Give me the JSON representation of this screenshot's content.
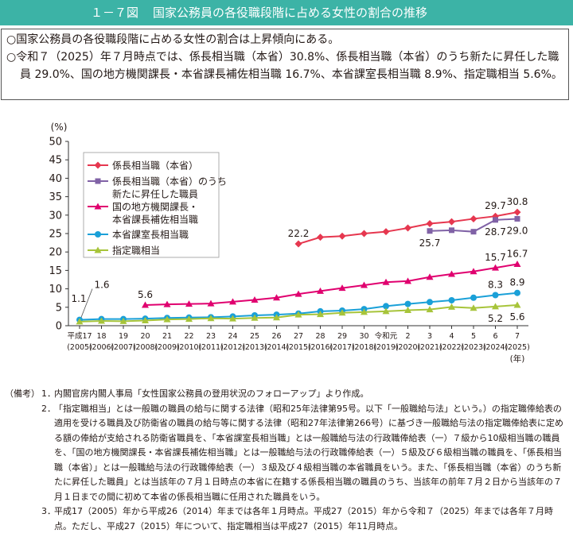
{
  "header": {
    "figure_number": "１－７図",
    "title": "国家公務員の各役職段階に占める女性の割合の推移"
  },
  "summary": [
    "○国家公務員の各役職段階に占める女性の割合は上昇傾向にある。",
    "○令和７（2025）年７月時点では、係長相当職（本省）30.8%、係長相当職（本省）のうち新たに昇任した職員 29.0%、国の地方機関課長・本省課長補佐相当職 16.7%、本省課室長相当職 8.9%、指定職相当 5.6%。"
  ],
  "notes": {
    "lead": "（備考）",
    "items": [
      {
        "num": "1．",
        "text": "内閣官房内閣人事局「女性国家公務員の登用状況のフォローアップ」より作成。"
      },
      {
        "num": "2．",
        "text": "「指定職相当」とは一般職の職員の給与に関する法律（昭和25年法律第95号。以下「一般職給与法」という。）の指定職俸給表の適用を受ける職員及び防衛省の職員の給与等に関する法律（昭和27年法律第266号）に基づき一般職給与法の指定職俸給表に定める額の俸給が支給される防衛省職員を、「本省課室長相当職」とは一般職給与法の行政職俸給表（一）７級から10級相当職の職員を、「国の地方機関課長・本省課長補佐相当職」とは一般職給与法の行政職俸給表（一）５級及び６級相当職の職員を、「係長相当職（本省）」とは一般職給与法の行政職俸給表（一）３級及び４級相当職の本省職員をいう。また、「係長相当職（本省）のうち新たに昇任した職員」とは当該年の７月１日時点の本省に在籍する係長相当職の職員のうち、当該年の前年７月２日から当該年の７月１日までの間に初めて本省の係長相当職に任用された職員をいう。"
      },
      {
        "num": "3．",
        "text": "平成17（2005）年から平成26（2014）年までは各年１月時点。平成27（2015）年から令和７（2025）年までは各年７月時点。ただし、平成27（2015）年について、指定職相当は平成27（2015）年11月時点。"
      }
    ]
  },
  "chart_data": {
    "type": "line",
    "y_unit": "(%)",
    "x_unit": "(年)",
    "ylim": [
      0,
      50
    ],
    "yticks": [
      "0",
      "5",
      "10",
      "15",
      "20",
      "25",
      "30",
      "35",
      "40",
      "45",
      "50"
    ],
    "categories": [
      "平成17",
      "18",
      "19",
      "20",
      "21",
      "22",
      "23",
      "24",
      "25",
      "26",
      "27",
      "28",
      "29",
      "30",
      "令和元",
      "2",
      "3",
      "4",
      "5",
      "6",
      "7"
    ],
    "categories_sub": [
      "(2005)",
      "(2006)",
      "(2007)",
      "(2008)",
      "(2009)",
      "(2010)",
      "(2011)",
      "(2012)",
      "(2013)",
      "(2014)",
      "(2015)",
      "(2016)",
      "(2017)",
      "(2018)",
      "(2019)",
      "(2020)",
      "(2021)",
      "(2022)",
      "(2023)",
      "(2024)",
      "(2025)"
    ],
    "grid": false,
    "legend_position": "upper-left",
    "series": [
      {
        "name": "係長相当職（本省）",
        "color": "#e6374f",
        "marker": "diamond",
        "values": [
          null,
          null,
          null,
          null,
          null,
          null,
          null,
          null,
          null,
          null,
          22.2,
          24.0,
          24.3,
          25.0,
          25.5,
          26.5,
          27.7,
          28.2,
          29.0,
          29.7,
          30.8
        ]
      },
      {
        "name": "係長相当職（本省）のうち新たに昇任した職員",
        "color": "#8062a6",
        "marker": "square",
        "values": [
          null,
          null,
          null,
          null,
          null,
          null,
          null,
          null,
          null,
          null,
          null,
          null,
          null,
          null,
          null,
          null,
          25.7,
          25.9,
          25.5,
          28.7,
          29.0
        ]
      },
      {
        "name": "国の地方機関課長・本省課長補佐相当職",
        "color": "#e0006f",
        "marker": "triangle",
        "values": [
          null,
          null,
          null,
          5.6,
          5.8,
          5.9,
          6.0,
          6.5,
          7.0,
          7.6,
          8.6,
          9.4,
          10.2,
          11.0,
          11.8,
          12.1,
          13.2,
          14.0,
          14.7,
          15.7,
          16.7
        ]
      },
      {
        "name": "本省課室長相当職",
        "color": "#1aa0d8",
        "marker": "circle",
        "values": [
          1.6,
          1.8,
          1.8,
          1.9,
          2.1,
          2.2,
          2.3,
          2.5,
          2.8,
          3.0,
          3.3,
          3.9,
          4.1,
          4.5,
          5.3,
          5.9,
          6.4,
          6.9,
          7.6,
          8.3,
          8.9
        ]
      },
      {
        "name": "指定職相当",
        "color": "#a7c43a",
        "marker": "triangle",
        "values": [
          1.1,
          1.3,
          1.2,
          1.4,
          1.7,
          1.8,
          2.0,
          1.9,
          2.1,
          2.2,
          3.0,
          3.1,
          3.5,
          3.7,
          3.9,
          4.2,
          4.4,
          5.1,
          4.8,
          5.2,
          5.6
        ]
      }
    ],
    "data_labels": [
      {
        "series": 0,
        "index": 10,
        "text": "22.2",
        "anchor": "above"
      },
      {
        "series": 0,
        "index": 19,
        "text": "29.7",
        "anchor": "above"
      },
      {
        "series": 0,
        "index": 20,
        "text": "30.8",
        "anchor": "above"
      },
      {
        "series": 1,
        "index": 16,
        "text": "25.7",
        "anchor": "below"
      },
      {
        "series": 1,
        "index": 19,
        "text": "28.7",
        "anchor": "below"
      },
      {
        "series": 1,
        "index": 20,
        "text": "29.0",
        "anchor": "below"
      },
      {
        "series": 2,
        "index": 3,
        "text": "5.6",
        "anchor": "above"
      },
      {
        "series": 2,
        "index": 19,
        "text": "15.7",
        "anchor": "above"
      },
      {
        "series": 2,
        "index": 20,
        "text": "16.7",
        "anchor": "above"
      },
      {
        "series": 3,
        "index": 0,
        "text": "1.6",
        "anchor": "leader-right"
      },
      {
        "series": 3,
        "index": 19,
        "text": "8.3",
        "anchor": "above"
      },
      {
        "series": 3,
        "index": 20,
        "text": "8.9",
        "anchor": "above"
      },
      {
        "series": 4,
        "index": 0,
        "text": "1.1",
        "anchor": "above-left"
      },
      {
        "series": 4,
        "index": 19,
        "text": "5.2",
        "anchor": "below"
      },
      {
        "series": 4,
        "index": 20,
        "text": "5.6",
        "anchor": "below"
      }
    ]
  }
}
